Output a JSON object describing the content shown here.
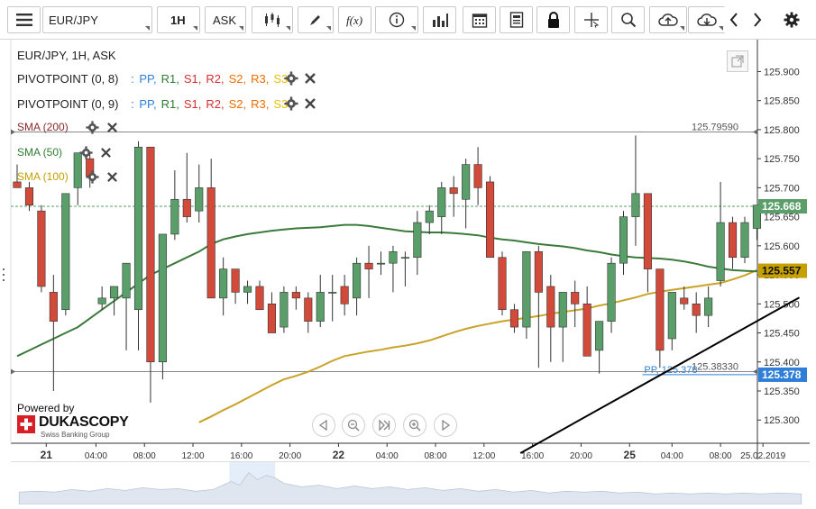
{
  "toolbar": {
    "instrument": "EUR/JPY",
    "timeframe": "1H",
    "side": "ASK",
    "fx_label": "f(x)"
  },
  "legend": {
    "title": "EUR/JPY, 1H, ASK",
    "pivot1_name": "PIVOTPOINT (0, 8)",
    "pivot2_name": "PIVOTPOINT (0, 9)",
    "pivot_items": [
      {
        "label": "PP,",
        "color": "#2f7fd8"
      },
      {
        "label": "R1,",
        "color": "#2e7d32"
      },
      {
        "label": "S1,",
        "color": "#d32f2f"
      },
      {
        "label": "R2,",
        "color": "#d32f2f"
      },
      {
        "label": "S2,",
        "color": "#ef6c00"
      },
      {
        "label": "R3,",
        "color": "#ef6c00"
      },
      {
        "label": "S3",
        "color": "#e6c200"
      }
    ],
    "pivot_sep": ":",
    "sma200": "SMA (200)",
    "sma50": "SMA (50)",
    "sma100": "SMA (100)"
  },
  "branding": {
    "powered_by": "Powered by",
    "logo_name": "DUKASCOPY",
    "logo_sub": "Swiss Banking Group"
  },
  "chart_data": {
    "type": "candlestick",
    "instrument": "EUR/JPY",
    "timeframe": "1H",
    "side": "ASK",
    "ylim": [
      125.26,
      125.955
    ],
    "y_ticks": [
      125.9,
      125.85,
      125.8,
      125.75,
      125.7,
      125.65,
      125.6,
      125.55,
      125.5,
      125.45,
      125.4,
      125.35,
      125.3
    ],
    "y_tick_labels": [
      "125.900",
      "125.850",
      "125.800",
      "125.750",
      "125.700",
      "125.650",
      "125.600",
      "125.550",
      "125.500",
      "125.450",
      "125.400",
      "125.350",
      "125.300"
    ],
    "x_ticks": [
      {
        "label": "21",
        "bold": true,
        "i": 2.4
      },
      {
        "label": "04:00",
        "bold": false,
        "i": 6.5
      },
      {
        "label": "08:00",
        "bold": false,
        "i": 10.5
      },
      {
        "label": "12:00",
        "bold": false,
        "i": 14.5
      },
      {
        "label": "16:00",
        "bold": false,
        "i": 18.5
      },
      {
        "label": "20:00",
        "bold": false,
        "i": 22.5
      },
      {
        "label": "22",
        "bold": true,
        "i": 26.5
      },
      {
        "label": "04:00",
        "bold": false,
        "i": 30.5
      },
      {
        "label": "08:00",
        "bold": false,
        "i": 34.5
      },
      {
        "label": "12:00",
        "bold": false,
        "i": 38.5
      },
      {
        "label": "16:00",
        "bold": false,
        "i": 42.5
      },
      {
        "label": "20:00",
        "bold": false,
        "i": 46.5
      },
      {
        "label": "25",
        "bold": true,
        "i": 50.5
      },
      {
        "label": "04:00",
        "bold": false,
        "i": 54.0
      },
      {
        "label": "08:00",
        "bold": false,
        "i": 58.0
      },
      {
        "label": "25.02.2019",
        "bold": false,
        "i": 61.5
      }
    ],
    "candles": [
      {
        "o": 125.71,
        "h": 125.74,
        "l": 125.7,
        "c": 125.7
      },
      {
        "o": 125.7,
        "h": 125.71,
        "l": 125.66,
        "c": 125.67
      },
      {
        "o": 125.66,
        "h": 125.67,
        "l": 125.52,
        "c": 125.53
      },
      {
        "o": 125.52,
        "h": 125.55,
        "l": 125.35,
        "c": 125.47
      },
      {
        "o": 125.49,
        "h": 125.69,
        "l": 125.48,
        "c": 125.69
      },
      {
        "o": 125.7,
        "h": 125.76,
        "l": 125.67,
        "c": 125.76
      },
      {
        "o": 125.75,
        "h": 125.76,
        "l": 125.7,
        "c": 125.72
      },
      {
        "o": 125.5,
        "h": 125.53,
        "l": 125.49,
        "c": 125.51
      },
      {
        "o": 125.51,
        "h": 125.53,
        "l": 125.48,
        "c": 125.53
      },
      {
        "o": 125.51,
        "h": 125.57,
        "l": 125.42,
        "c": 125.57
      },
      {
        "o": 125.49,
        "h": 125.78,
        "l": 125.42,
        "c": 125.77
      },
      {
        "o": 125.77,
        "h": 125.77,
        "l": 125.33,
        "c": 125.4
      },
      {
        "o": 125.4,
        "h": 125.62,
        "l": 125.37,
        "c": 125.62
      },
      {
        "o": 125.62,
        "h": 125.73,
        "l": 125.61,
        "c": 125.68
      },
      {
        "o": 125.68,
        "h": 125.76,
        "l": 125.64,
        "c": 125.65
      },
      {
        "o": 125.66,
        "h": 125.74,
        "l": 125.64,
        "c": 125.7
      },
      {
        "o": 125.7,
        "h": 125.75,
        "l": 125.51,
        "c": 125.51
      },
      {
        "o": 125.51,
        "h": 125.58,
        "l": 125.48,
        "c": 125.56
      },
      {
        "o": 125.56,
        "h": 125.56,
        "l": 125.5,
        "c": 125.52
      },
      {
        "o": 125.52,
        "h": 125.54,
        "l": 125.5,
        "c": 125.53
      },
      {
        "o": 125.53,
        "h": 125.54,
        "l": 125.49,
        "c": 125.49
      },
      {
        "o": 125.5,
        "h": 125.52,
        "l": 125.45,
        "c": 125.45
      },
      {
        "o": 125.46,
        "h": 125.53,
        "l": 125.45,
        "c": 125.52
      },
      {
        "o": 125.52,
        "h": 125.53,
        "l": 125.49,
        "c": 125.51
      },
      {
        "o": 125.51,
        "h": 125.52,
        "l": 125.45,
        "c": 125.47
      },
      {
        "o": 125.47,
        "h": 125.55,
        "l": 125.46,
        "c": 125.52
      },
      {
        "o": 125.52,
        "h": 125.55,
        "l": 125.47,
        "c": 125.52
      },
      {
        "o": 125.53,
        "h": 125.55,
        "l": 125.48,
        "c": 125.5
      },
      {
        "o": 125.51,
        "h": 125.58,
        "l": 125.48,
        "c": 125.57
      },
      {
        "o": 125.57,
        "h": 125.6,
        "l": 125.51,
        "c": 125.56
      },
      {
        "o": 125.57,
        "h": 125.59,
        "l": 125.55,
        "c": 125.57
      },
      {
        "o": 125.57,
        "h": 125.6,
        "l": 125.52,
        "c": 125.59
      },
      {
        "o": 125.58,
        "h": 125.59,
        "l": 125.53,
        "c": 125.58
      },
      {
        "o": 125.58,
        "h": 125.66,
        "l": 125.55,
        "c": 125.64
      },
      {
        "o": 125.64,
        "h": 125.67,
        "l": 125.62,
        "c": 125.66
      },
      {
        "o": 125.65,
        "h": 125.71,
        "l": 125.62,
        "c": 125.7
      },
      {
        "o": 125.7,
        "h": 125.72,
        "l": 125.65,
        "c": 125.69
      },
      {
        "o": 125.68,
        "h": 125.75,
        "l": 125.63,
        "c": 125.74
      },
      {
        "o": 125.74,
        "h": 125.77,
        "l": 125.67,
        "c": 125.7
      },
      {
        "o": 125.71,
        "h": 125.72,
        "l": 125.58,
        "c": 125.58
      },
      {
        "o": 125.58,
        "h": 125.59,
        "l": 125.48,
        "c": 125.49
      },
      {
        "o": 125.49,
        "h": 125.5,
        "l": 125.45,
        "c": 125.46
      },
      {
        "o": 125.46,
        "h": 125.59,
        "l": 125.44,
        "c": 125.59
      },
      {
        "o": 125.59,
        "h": 125.6,
        "l": 125.39,
        "c": 125.52
      },
      {
        "o": 125.53,
        "h": 125.55,
        "l": 125.4,
        "c": 125.46
      },
      {
        "o": 125.46,
        "h": 125.52,
        "l": 125.4,
        "c": 125.52
      },
      {
        "o": 125.52,
        "h": 125.54,
        "l": 125.46,
        "c": 125.5
      },
      {
        "o": 125.5,
        "h": 125.53,
        "l": 125.41,
        "c": 125.41
      },
      {
        "o": 125.42,
        "h": 125.47,
        "l": 125.38,
        "c": 125.47
      },
      {
        "o": 125.47,
        "h": 125.58,
        "l": 125.45,
        "c": 125.57
      },
      {
        "o": 125.57,
        "h": 125.66,
        "l": 125.55,
        "c": 125.65
      },
      {
        "o": 125.65,
        "h": 125.79,
        "l": 125.6,
        "c": 125.69
      },
      {
        "o": 125.69,
        "h": 125.69,
        "l": 125.52,
        "c": 125.56
      },
      {
        "o": 125.56,
        "h": 125.56,
        "l": 125.39,
        "c": 125.42
      },
      {
        "o": 125.44,
        "h": 125.52,
        "l": 125.42,
        "c": 125.52
      },
      {
        "o": 125.51,
        "h": 125.53,
        "l": 125.49,
        "c": 125.5
      },
      {
        "o": 125.5,
        "h": 125.52,
        "l": 125.45,
        "c": 125.48
      },
      {
        "o": 125.48,
        "h": 125.53,
        "l": 125.46,
        "c": 125.51
      },
      {
        "o": 125.54,
        "h": 125.71,
        "l": 125.53,
        "c": 125.64
      },
      {
        "o": 125.64,
        "h": 125.65,
        "l": 125.56,
        "c": 125.58
      },
      {
        "o": 125.58,
        "h": 125.65,
        "l": 125.57,
        "c": 125.64
      },
      {
        "o": 125.63,
        "h": 125.67,
        "l": 125.61,
        "c": 125.67
      }
    ],
    "sma50": [
      125.41,
      125.42,
      125.43,
      125.44,
      125.45,
      125.46,
      125.475,
      125.49,
      125.505,
      125.52,
      125.535,
      125.55,
      125.56,
      125.57,
      125.58,
      125.59,
      125.603,
      125.611,
      125.616,
      125.62,
      125.623,
      125.626,
      125.628,
      125.63,
      125.631,
      125.632,
      125.634,
      125.636,
      125.636,
      125.634,
      125.631,
      125.628,
      125.625,
      125.624,
      125.623,
      125.623,
      125.622,
      125.62,
      125.618,
      125.614,
      125.611,
      125.609,
      125.606,
      125.603,
      125.601,
      125.599,
      125.596,
      125.592,
      125.589,
      125.585,
      125.582,
      125.58,
      125.579,
      125.578,
      125.576,
      125.573,
      125.569,
      125.564,
      125.561,
      125.558,
      125.557,
      125.556
    ],
    "sma100": [
      null,
      null,
      null,
      null,
      null,
      null,
      null,
      null,
      null,
      null,
      null,
      null,
      null,
      null,
      null,
      125.296,
      125.306,
      125.317,
      125.327,
      125.338,
      125.349,
      125.36,
      125.37,
      125.376,
      125.383,
      125.392,
      125.402,
      125.41,
      125.414,
      125.418,
      125.421,
      125.425,
      125.428,
      125.432,
      125.437,
      125.444,
      125.451,
      125.457,
      125.462,
      125.466,
      125.47,
      125.473,
      125.476,
      125.479,
      125.483,
      125.486,
      125.489,
      125.492,
      125.497,
      125.501,
      125.506,
      125.511,
      125.517,
      125.521,
      125.524,
      125.527,
      125.53,
      125.533,
      125.536,
      125.542,
      125.549,
      125.558
    ],
    "trendline": {
      "from": {
        "i": 41.5,
        "value": 125.243
      },
      "to": {
        "i": 64.5,
        "value": 125.511
      }
    },
    "hlines": [
      {
        "value": 125.7959,
        "label": "125.79590",
        "color": "#888888"
      },
      {
        "value": 125.3833,
        "label": "125.38330",
        "color": "#888888"
      },
      {
        "value": 125.378,
        "label": "PP, 125.378",
        "color": "#2f7fd8",
        "from_i": 52
      }
    ],
    "last_price": {
      "value": 125.668,
      "label": "125.668",
      "color": "#5a9e6a"
    },
    "sma50_last": {
      "value": 125.557,
      "label": "125.557",
      "color": "#c5a000"
    },
    "pp_tag": {
      "value": 125.378,
      "label": "125.378",
      "color": "#2f7fd8"
    },
    "colors": {
      "up": "#5a9e6a",
      "down": "#d14a3a",
      "sma50": "#3b7a3b",
      "sma100": "#c9a227",
      "trend": "#000000"
    }
  }
}
